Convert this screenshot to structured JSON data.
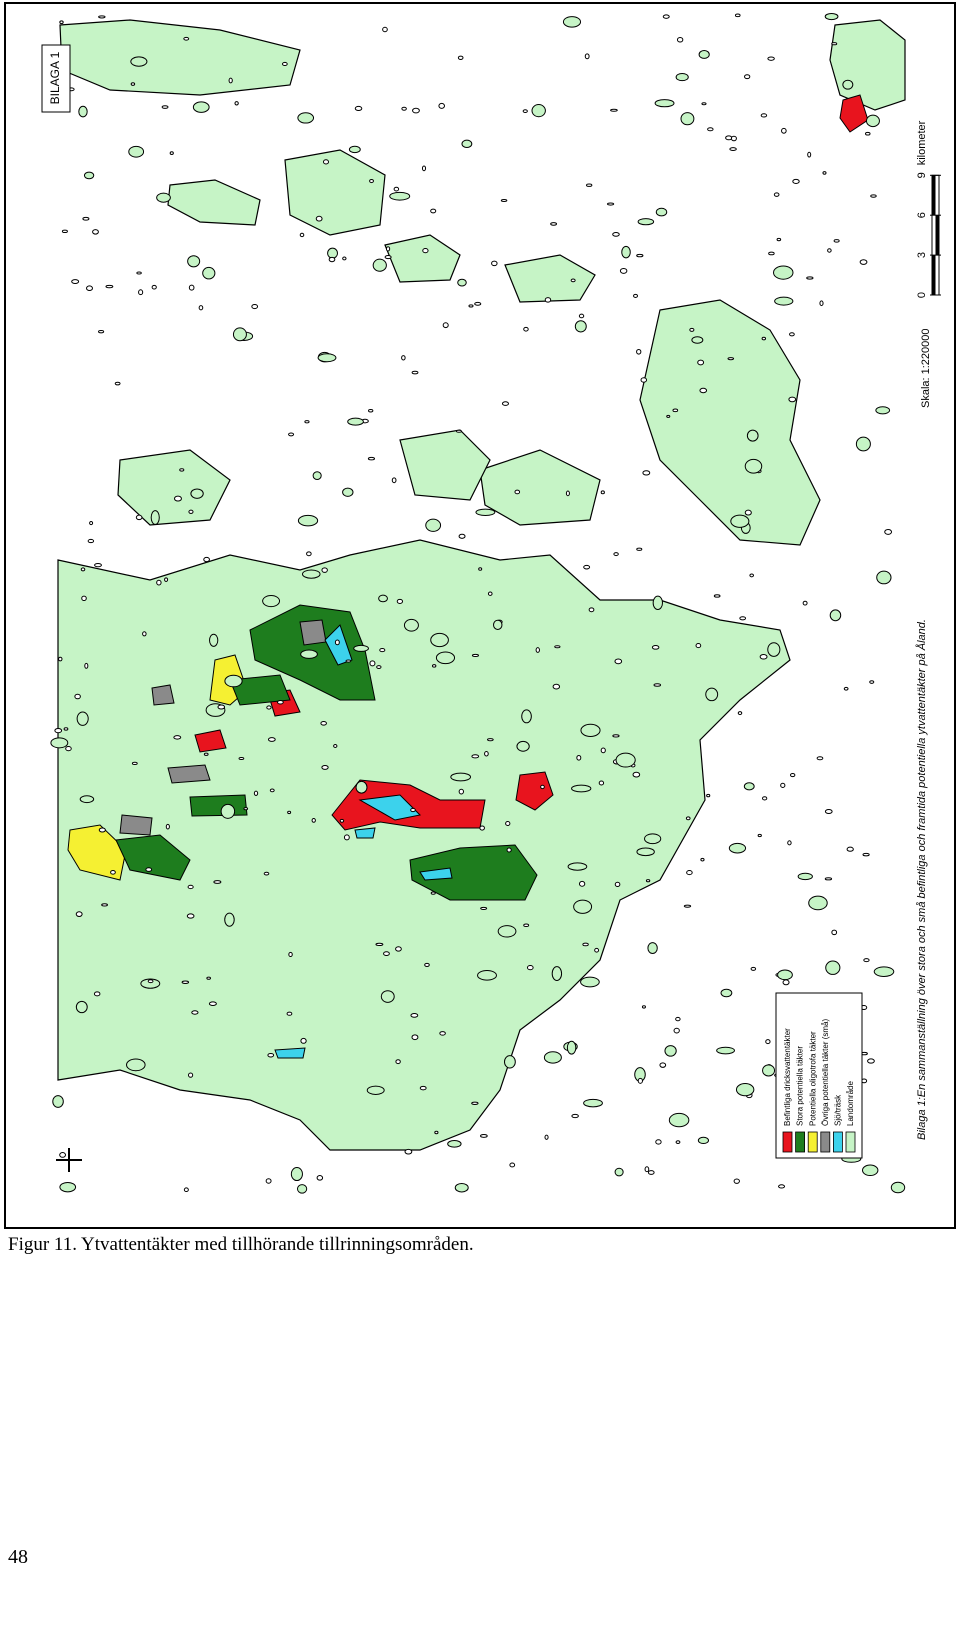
{
  "map": {
    "label": "BILAGA 1",
    "title": "Bilaga 1:En sammanställning över stora och små befintliga och framtida potentiella ytvattentäkter på Åland.",
    "scale": {
      "label": "Skala: 1:220000",
      "ticks": [
        0,
        3,
        6,
        9
      ],
      "unit": "kilometer"
    },
    "legend": [
      {
        "label": "Befintliga dricksvattentäkter",
        "color": "#e8141e"
      },
      {
        "label": "Stora potentiella täkter",
        "color": "#1e7d1e"
      },
      {
        "label": "Potentiella oligotrofa täkter",
        "color": "#f5f032"
      },
      {
        "label": "Övriga potentiella täkter (små)",
        "color": "#8a8a8a"
      },
      {
        "label": "Sjö/träsk",
        "color": "#3cd2ec"
      },
      {
        "label": "Landområde",
        "color": "#c6f4c6"
      }
    ]
  },
  "caption": "Figur 11. Ytvattentäkter med tillhörande tillrinningsområden.",
  "page_number": 48
}
